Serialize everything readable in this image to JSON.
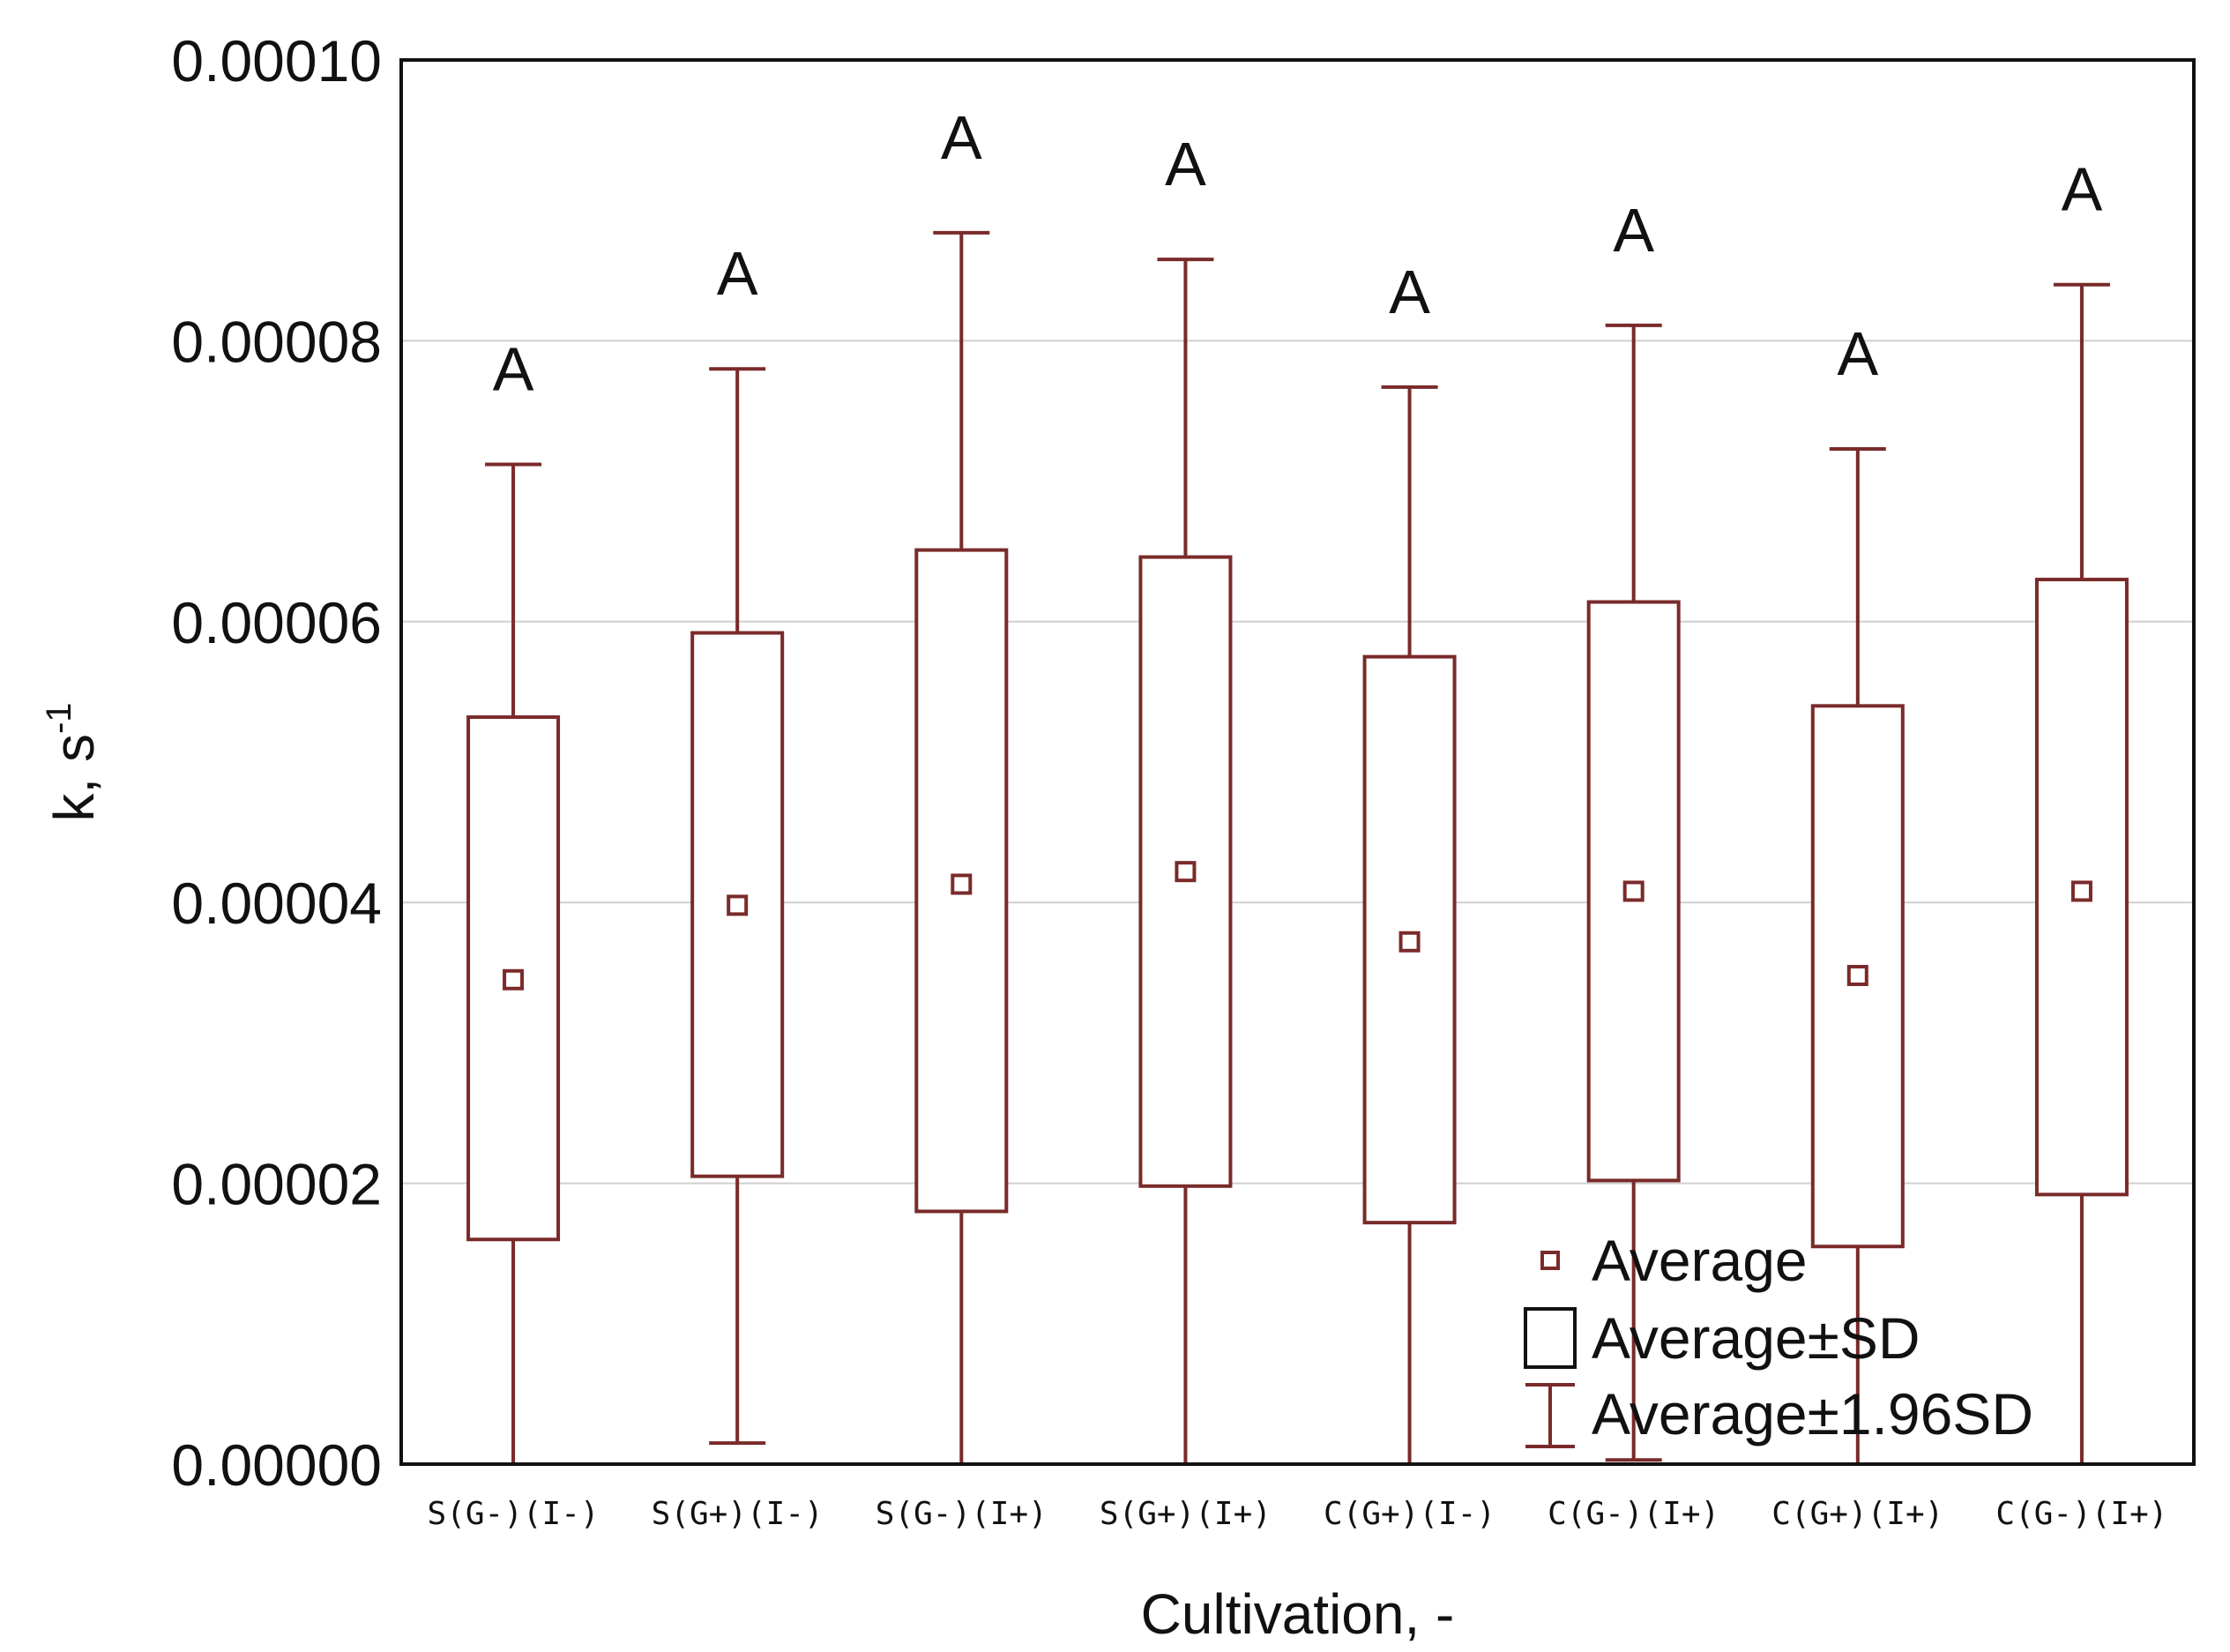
{
  "chart_data": {
    "type": "box",
    "xlabel": "Cultivation, -",
    "ylabel": "k, s",
    "ylabel_superscript": "-1",
    "ylim": [
      0,
      0.0001
    ],
    "yticks": [
      "0.00000",
      "0.00002",
      "0.00004",
      "0.00006",
      "0.00008",
      "0.00010"
    ],
    "ytick_values": [
      0,
      2e-05,
      4e-05,
      6e-05,
      8e-05,
      0.0001
    ],
    "grid": "horizontal",
    "legend_position": "bottom-right",
    "colors": {
      "box": "#7a2a2a",
      "grid": "#cfcfcf",
      "frame": "#111111"
    },
    "categories": [
      "S(G-)(I-)",
      "S(G+)(I-)",
      "S(G-)(I+)",
      "S(G+)(I+)",
      "C(G+)(I-)",
      "C(G-)(I+)",
      "C(G+)(I+)",
      "C(G-)(I+)"
    ],
    "series": [
      {
        "mean": 3.45e-05,
        "sd_low": 1.6e-05,
        "sd_high": 5.32e-05,
        "whisker_low": 0.0,
        "whisker_high": 7.12e-05,
        "group": "A"
      },
      {
        "mean": 3.98e-05,
        "sd_low": 2.05e-05,
        "sd_high": 5.92e-05,
        "whisker_low": 1.5e-06,
        "whisker_high": 7.8e-05,
        "group": "A"
      },
      {
        "mean": 4.13e-05,
        "sd_low": 1.8e-05,
        "sd_high": 6.51e-05,
        "whisker_low": 0.0,
        "whisker_high": 8.77e-05,
        "group": "A"
      },
      {
        "mean": 4.22e-05,
        "sd_low": 1.98e-05,
        "sd_high": 6.46e-05,
        "whisker_low": 0.0,
        "whisker_high": 8.58e-05,
        "group": "A"
      },
      {
        "mean": 3.72e-05,
        "sd_low": 1.72e-05,
        "sd_high": 5.75e-05,
        "whisker_low": 0.0,
        "whisker_high": 7.67e-05,
        "group": "A"
      },
      {
        "mean": 4.08e-05,
        "sd_low": 2.02e-05,
        "sd_high": 6.14e-05,
        "whisker_low": 3e-07,
        "whisker_high": 8.11e-05,
        "group": "A"
      },
      {
        "mean": 3.48e-05,
        "sd_low": 1.55e-05,
        "sd_high": 5.4e-05,
        "whisker_low": 0.0,
        "whisker_high": 7.23e-05,
        "group": "A"
      },
      {
        "mean": 4.08e-05,
        "sd_low": 1.92e-05,
        "sd_high": 6.3e-05,
        "whisker_low": 0.0,
        "whisker_high": 8.4e-05,
        "group": "A"
      }
    ],
    "legend": [
      {
        "symbol": "mean",
        "label": "Average"
      },
      {
        "symbol": "box",
        "label": "Average±SD"
      },
      {
        "symbol": "whisker",
        "label": "Average±1.96SD"
      }
    ]
  }
}
